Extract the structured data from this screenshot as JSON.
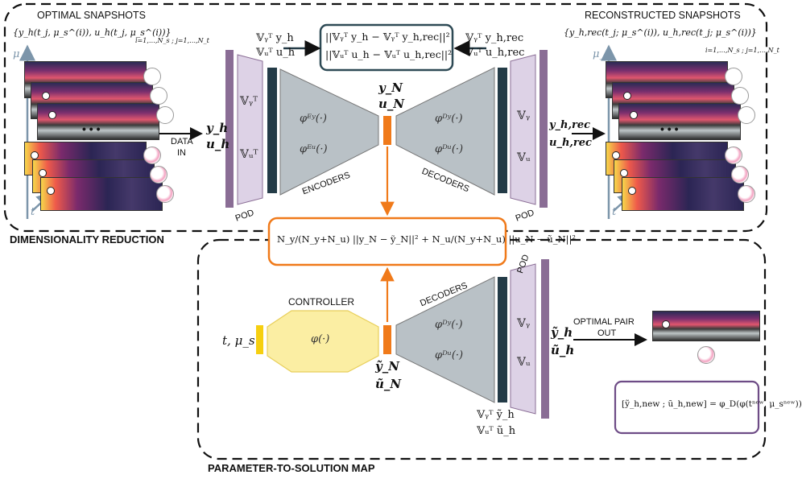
{
  "labels": {
    "optimal_snapshots": "OPTIMAL SNAPSHOTS",
    "reconstructed_snapshots": "RECONSTRUCTED SNAPSHOTS",
    "dimensionality_reduction": "DIMENSIONALITY REDUCTION",
    "parameter_to_solution_map": "PARAMETER-TO-SOLUTION MAP",
    "data_in_1": "DATA",
    "data_in_2": "IN",
    "pod_left": "POD",
    "pod_right": "POD",
    "pod_bottom": "POD",
    "encoders": "ENCODERS",
    "decoders_top": "DECODERS",
    "decoders_bottom": "DECODERS",
    "controller": "CONTROLLER",
    "optimal_pair_out_1": "OPTIMAL PAIR",
    "optimal_pair_out_2": "OUT",
    "dots_left": "• • •",
    "dots_right": "• • •"
  },
  "math": {
    "snap_set": "{y_h(t_j, μ_s^(i)), u_h(t_j, μ_s^(i))}",
    "snap_idx": "i=1,…,N_s ; j=1,…,N_t",
    "rec_set": "{y_h,rec(t_j; μ_s^(i)), u_h,rec(t_j; μ_s^(i))}",
    "rec_idx": "i=1,…,N_s ; j=1,…,N_t",
    "mu_s": "μ_s",
    "t": "t",
    "yh": "y_h",
    "uh": "u_h",
    "yh_rec": "y_h,rec",
    "uh_rec": "u_h,rec",
    "Vy_T": "𝕍ᵧᵀ",
    "Vu_T": "𝕍ᵤᵀ",
    "Vy": "𝕍ᵧ",
    "Vu": "𝕍ᵤ",
    "Vy_T_yh": "𝕍ᵧᵀ y_h",
    "Vu_T_uh": "𝕍ᵤᵀ u_h",
    "Vy_T_yh_rec": "𝕍ᵧᵀ y_h,rec",
    "Vu_T_uh_rec": "𝕍ᵤᵀ u_h,rec",
    "loss_rec_1": "||𝕍ᵧᵀ y_h − 𝕍ᵧᵀ y_h,rec||²",
    "loss_rec_2": "||𝕍ᵤᵀ u_h − 𝕍ᵤᵀ u_h,rec||²",
    "phi_E_y": "φᴱʸ(·)",
    "phi_E_u": "φᴱᵘ(·)",
    "phi_D_y": "φᴰʸ(·)",
    "phi_D_u": "φᴰᵘ(·)",
    "phi_D_y_b": "φᴰʸ(·)",
    "phi_D_u_b": "φᴰᵘ(·)",
    "yN": "y_N",
    "uN": "u_N",
    "loss_latent": "N_y/(N_y+N_u) ||y_N − ỹ_N||² + N_u/(N_y+N_u) ||u_N − ũ_N||²",
    "t_mu": "t, μ_s",
    "phi": "φ(·)",
    "yN_tilde": "ỹ_N",
    "uN_tilde": "ũ_N",
    "yh_tilde": "ỹ_h",
    "uh_tilde": "ũ_h",
    "Vy_T_yh_tilde": "𝕍ᵧᵀ ỹ_h",
    "Vu_T_uh_tilde": "𝕍ᵤᵀ ũ_h",
    "final_eq": "[ỹ_h,new ; ũ_h,new] = φ_D(φ(tⁿᵉʷ, μ_sⁿᵉʷ))"
  },
  "colors": {
    "pod_purple": "#8a6d95",
    "pod_light": "#ddd2e6",
    "encoder_gray": "#b9c1c6",
    "dark_slate": "#233b47",
    "orange": "#f07a1a",
    "controller_yellow": "#fbeea3",
    "arrow_blue": "#7c95aa",
    "dashed_border": "#111111",
    "box_slate": "#2e4a55",
    "box_purple": "#6e4c86"
  }
}
